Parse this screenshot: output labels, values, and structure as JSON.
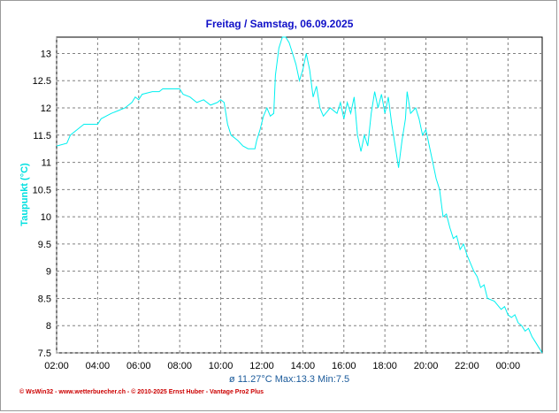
{
  "colors": {
    "line": "#00f0f0",
    "title": "#1010c8",
    "grid": "#808080",
    "footer": "#cc0000",
    "stats": "#1a5a9a"
  },
  "chart_data": {
    "type": "line",
    "title": "Freitag / Samstag, 06.09.2025",
    "ylabel": "Taupunkt (°C)",
    "xlabel": "",
    "ylim": [
      7.5,
      13.3
    ],
    "yticks": [
      13,
      12.5,
      12,
      11.5,
      11,
      10.5,
      10,
      9.5,
      9,
      8.5,
      8,
      7.5
    ],
    "xlim": [
      "2025-09-05 02:00",
      "2025-09-06 01:40"
    ],
    "xticks": [
      {
        "x": "2025-09-05 02:00",
        "label": "02:00"
      },
      {
        "x": "2025-09-05 04:00",
        "label": "04:00"
      },
      {
        "x": "2025-09-05 06:00",
        "label": "06:00"
      },
      {
        "x": "2025-09-05 08:00",
        "label": "08:00"
      },
      {
        "x": "2025-09-05 10:00",
        "label": "10:00"
      },
      {
        "x": "2025-09-05 12:00",
        "label": "12:00"
      },
      {
        "x": "2025-09-05 14:00",
        "label": "14:00"
      },
      {
        "x": "2025-09-05 16:00",
        "label": "16:00"
      },
      {
        "x": "2025-09-05 18:00",
        "label": "18:00"
      },
      {
        "x": "2025-09-05 20:00",
        "label": "20:00"
      },
      {
        "x": "2025-09-05 22:00",
        "label": "22:00"
      },
      {
        "x": "2025-09-06 00:00",
        "label": "00:00"
      }
    ],
    "grid": true,
    "series": [
      {
        "color": "#00f0f0",
        "points": [
          [
            "2025-09-05 02:00",
            11.3
          ],
          [
            "2025-09-05 02:30",
            11.35
          ],
          [
            "2025-09-05 02:40",
            11.5
          ],
          [
            "2025-09-05 03:00",
            11.6
          ],
          [
            "2025-09-05 03:20",
            11.7
          ],
          [
            "2025-09-05 04:00",
            11.7
          ],
          [
            "2025-09-05 04:10",
            11.8
          ],
          [
            "2025-09-05 04:40",
            11.9
          ],
          [
            "2025-09-05 05:00",
            11.95
          ],
          [
            "2025-09-05 05:20",
            12.0
          ],
          [
            "2025-09-05 05:40",
            12.1
          ],
          [
            "2025-09-05 05:50",
            12.2
          ],
          [
            "2025-09-05 06:00",
            12.15
          ],
          [
            "2025-09-05 06:10",
            12.25
          ],
          [
            "2025-09-05 06:40",
            12.3
          ],
          [
            "2025-09-05 07:00",
            12.3
          ],
          [
            "2025-09-05 07:10",
            12.35
          ],
          [
            "2025-09-05 08:00",
            12.35
          ],
          [
            "2025-09-05 08:10",
            12.25
          ],
          [
            "2025-09-05 08:30",
            12.2
          ],
          [
            "2025-09-05 08:50",
            12.1
          ],
          [
            "2025-09-05 09:10",
            12.15
          ],
          [
            "2025-09-05 09:30",
            12.05
          ],
          [
            "2025-09-05 09:50",
            12.1
          ],
          [
            "2025-09-05 10:00",
            12.15
          ],
          [
            "2025-09-05 10:10",
            12.1
          ],
          [
            "2025-09-05 10:20",
            11.7
          ],
          [
            "2025-09-05 10:30",
            11.5
          ],
          [
            "2025-09-05 10:50",
            11.4
          ],
          [
            "2025-09-05 11:05",
            11.3
          ],
          [
            "2025-09-05 11:20",
            11.25
          ],
          [
            "2025-09-05 11:40",
            11.25
          ],
          [
            "2025-09-05 11:45",
            11.4
          ],
          [
            "2025-09-05 11:55",
            11.6
          ],
          [
            "2025-09-05 12:05",
            11.85
          ],
          [
            "2025-09-05 12:15",
            12.0
          ],
          [
            "2025-09-05 12:25",
            11.85
          ],
          [
            "2025-09-05 12:35",
            11.9
          ],
          [
            "2025-09-05 12:40",
            12.6
          ],
          [
            "2025-09-05 12:50",
            13.1
          ],
          [
            "2025-09-05 13:00",
            13.3
          ],
          [
            "2025-09-05 13:10",
            13.3
          ],
          [
            "2025-09-05 13:20",
            13.2
          ],
          [
            "2025-09-05 13:30",
            13.0
          ],
          [
            "2025-09-05 13:40",
            12.8
          ],
          [
            "2025-09-05 13:50",
            12.5
          ],
          [
            "2025-09-05 14:00",
            12.7
          ],
          [
            "2025-09-05 14:10",
            13.0
          ],
          [
            "2025-09-05 14:20",
            12.7
          ],
          [
            "2025-09-05 14:30",
            12.2
          ],
          [
            "2025-09-05 14:40",
            12.4
          ],
          [
            "2025-09-05 14:50",
            12.0
          ],
          [
            "2025-09-05 15:00",
            11.85
          ],
          [
            "2025-09-05 15:20",
            12.0
          ],
          [
            "2025-09-05 15:40",
            11.9
          ],
          [
            "2025-09-05 15:50",
            12.1
          ],
          [
            "2025-09-05 16:00",
            11.8
          ],
          [
            "2025-09-05 16:10",
            12.1
          ],
          [
            "2025-09-05 16:20",
            11.9
          ],
          [
            "2025-09-05 16:30",
            12.2
          ],
          [
            "2025-09-05 16:40",
            11.5
          ],
          [
            "2025-09-05 16:50",
            11.2
          ],
          [
            "2025-09-05 17:00",
            11.5
          ],
          [
            "2025-09-05 17:10",
            11.3
          ],
          [
            "2025-09-05 17:20",
            11.9
          ],
          [
            "2025-09-05 17:30",
            12.3
          ],
          [
            "2025-09-05 17:40",
            12.0
          ],
          [
            "2025-09-05 17:50",
            12.25
          ],
          [
            "2025-09-05 18:00",
            11.9
          ],
          [
            "2025-09-05 18:10",
            12.2
          ],
          [
            "2025-09-05 18:20",
            11.7
          ],
          [
            "2025-09-05 18:30",
            11.3
          ],
          [
            "2025-09-05 18:40",
            10.9
          ],
          [
            "2025-09-05 18:50",
            11.4
          ],
          [
            "2025-09-05 19:00",
            11.8
          ],
          [
            "2025-09-05 19:05",
            12.3
          ],
          [
            "2025-09-05 19:15",
            11.9
          ],
          [
            "2025-09-05 19:30",
            12.0
          ],
          [
            "2025-09-05 19:40",
            11.8
          ],
          [
            "2025-09-05 19:50",
            11.5
          ],
          [
            "2025-09-05 20:00",
            11.6
          ],
          [
            "2025-09-05 20:10",
            11.3
          ],
          [
            "2025-09-05 20:20",
            11.0
          ],
          [
            "2025-09-05 20:30",
            10.7
          ],
          [
            "2025-09-05 20:40",
            10.5
          ],
          [
            "2025-09-05 20:50",
            10.0
          ],
          [
            "2025-09-05 21:00",
            10.05
          ],
          [
            "2025-09-05 21:10",
            9.8
          ],
          [
            "2025-09-05 21:20",
            9.6
          ],
          [
            "2025-09-05 21:30",
            9.65
          ],
          [
            "2025-09-05 21:40",
            9.4
          ],
          [
            "2025-09-05 21:50",
            9.5
          ],
          [
            "2025-09-05 22:00",
            9.3
          ],
          [
            "2025-09-05 22:10",
            9.15
          ],
          [
            "2025-09-05 22:20",
            9.0
          ],
          [
            "2025-09-05 22:30",
            8.9
          ],
          [
            "2025-09-05 22:40",
            8.7
          ],
          [
            "2025-09-05 22:50",
            8.75
          ],
          [
            "2025-09-05 23:00",
            8.5
          ],
          [
            "2025-09-05 23:20",
            8.45
          ],
          [
            "2025-09-05 23:40",
            8.3
          ],
          [
            "2025-09-05 23:50",
            8.35
          ],
          [
            "2025-09-06 00:00",
            8.2
          ],
          [
            "2025-09-06 00:10",
            8.15
          ],
          [
            "2025-09-06 00:20",
            8.2
          ],
          [
            "2025-09-06 00:30",
            8.05
          ],
          [
            "2025-09-06 00:40",
            8.0
          ],
          [
            "2025-09-06 00:50",
            7.9
          ],
          [
            "2025-09-06 01:00",
            7.95
          ],
          [
            "2025-09-06 01:10",
            7.8
          ],
          [
            "2025-09-06 01:20",
            7.7
          ],
          [
            "2025-09-06 01:30",
            7.6
          ],
          [
            "2025-09-06 01:40",
            7.5
          ]
        ]
      }
    ]
  },
  "stats_text": "ø 11.27°C  Max:13.3  Min:7.5",
  "footer_text": "© WsWin32 - www.wetterbuecher.ch - © 2010-2025 Ernst Huber - Vantage Pro2 Plus"
}
